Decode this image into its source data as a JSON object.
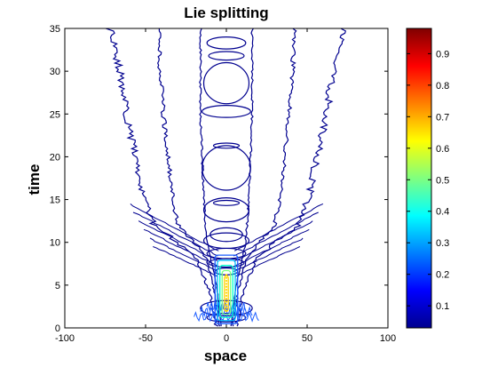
{
  "chart_data": {
    "type": "contour",
    "title": "Lie splitting",
    "xlabel": "space",
    "ylabel": "time",
    "xlim": [
      -100,
      100
    ],
    "ylim": [
      0,
      35
    ],
    "xticks": [
      -100,
      -50,
      0,
      50,
      100
    ],
    "yticks": [
      0,
      5,
      10,
      15,
      20,
      25,
      30,
      35
    ],
    "grid": false,
    "colorbar": {
      "ticks": [
        0.1,
        0.2,
        0.3,
        0.4,
        0.5,
        0.6,
        0.7,
        0.8,
        0.9
      ],
      "range": [
        0.03,
        0.98
      ],
      "colormap": "jet"
    },
    "contour_level_colors": [
      "#00008f",
      "#1a5cff",
      "#00bfff",
      "#00ffd0",
      "#7fff7f",
      "#ffd400"
    ],
    "wavefronts": {
      "outer": [
        {
          "t": 0,
          "x": 6
        },
        {
          "t": 4,
          "x": 10
        },
        {
          "t": 8,
          "x": 18
        },
        {
          "t": 10,
          "x": 30
        },
        {
          "t": 12,
          "x": 45
        },
        {
          "t": 16,
          "x": 52
        },
        {
          "t": 20,
          "x": 56
        },
        {
          "t": 25,
          "x": 62
        },
        {
          "t": 30,
          "x": 66
        },
        {
          "t": 35,
          "x": 72
        }
      ],
      "inner": [
        {
          "t": 0,
          "x": 4
        },
        {
          "t": 4,
          "x": 7
        },
        {
          "t": 8,
          "x": 12
        },
        {
          "t": 10,
          "x": 20
        },
        {
          "t": 12,
          "x": 30
        },
        {
          "t": 16,
          "x": 34
        },
        {
          "t": 20,
          "x": 36
        },
        {
          "t": 25,
          "x": 39
        },
        {
          "t": 30,
          "x": 41
        },
        {
          "t": 35,
          "x": 42
        }
      ],
      "core": [
        {
          "t": 0,
          "x": 3
        },
        {
          "t": 5,
          "x": 6
        },
        {
          "t": 10,
          "x": 12
        },
        {
          "t": 15,
          "x": 14
        },
        {
          "t": 20,
          "x": 15
        },
        {
          "t": 25,
          "x": 16
        },
        {
          "t": 30,
          "x": 16
        },
        {
          "t": 35,
          "x": 16
        }
      ]
    },
    "central_rings": [
      {
        "t": 33.3,
        "halfwidth": 12,
        "halfheight": 0.7
      },
      {
        "t": 31.8,
        "halfwidth": 11,
        "halfheight": 0.5
      },
      {
        "t": 28.6,
        "halfwidth": 14,
        "halfheight": 2.4
      },
      {
        "t": 25.3,
        "halfwidth": 15,
        "halfheight": 0.7
      },
      {
        "t": 21.3,
        "halfwidth": 8,
        "halfheight": 0.3
      },
      {
        "t": 18.7,
        "halfwidth": 15,
        "halfheight": 2.6
      },
      {
        "t": 14.6,
        "halfwidth": 8,
        "halfheight": 0.3
      },
      {
        "t": 13.8,
        "halfwidth": 14,
        "halfheight": 1.4
      },
      {
        "t": 10.9,
        "halfwidth": 10,
        "halfheight": 0.8
      },
      {
        "t": 10.2,
        "halfwidth": 14,
        "halfheight": 0.9
      },
      {
        "t": 8.7,
        "halfwidth": 12,
        "halfheight": 0.6
      },
      {
        "t": 7.6,
        "halfwidth": 11,
        "halfheight": 0.5
      },
      {
        "t": 6.6,
        "halfwidth": 7,
        "halfheight": 0.4
      },
      {
        "t": 2.3,
        "halfwidth": 16,
        "halfheight": 0.9
      },
      {
        "t": 1.2,
        "halfwidth": 12,
        "halfheight": 0.5
      }
    ],
    "peak": {
      "x": 0,
      "t_from": 0.5,
      "t_to": 8.5,
      "max_value": 0.6
    }
  }
}
